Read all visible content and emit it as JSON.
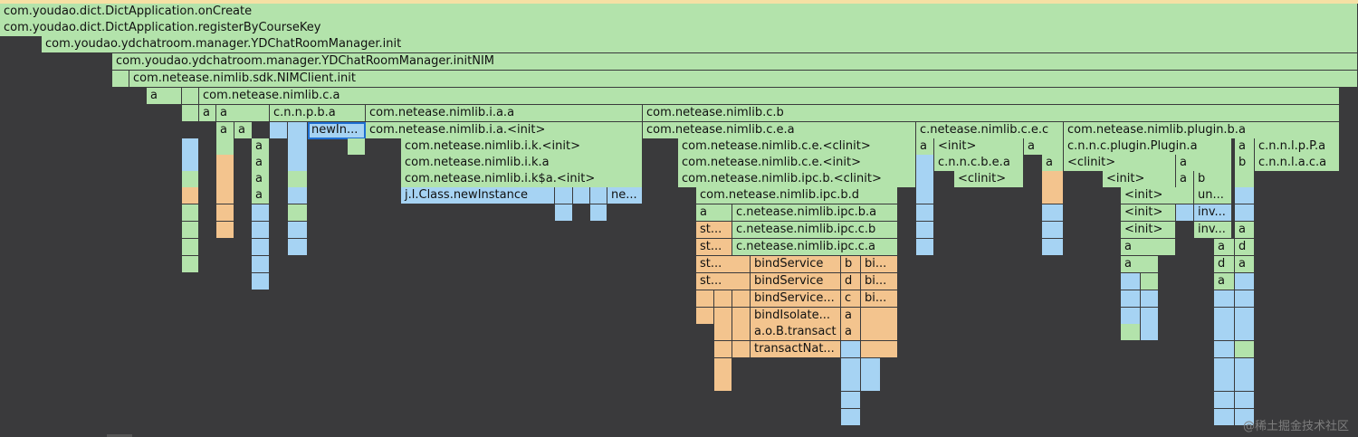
{
  "labels": {
    "onCreate": "com.youdao.dict.DictApplication.onCreate",
    "registerByCourseKey": "com.youdao.dict.DictApplication.registerByCourseKey",
    "ydInit": "com.youdao.ydchatroom.manager.YDChatRoomManager.init",
    "ydInitNIM": "com.youdao.ydchatroom.manager.YDChatRoomManager.initNIM",
    "nimClientInit": "com.netease.nimlib.sdk.NIMClient.init",
    "a": "a",
    "ca": "com.netease.nimlib.c.a",
    "cnnpba": "c.n.n.p.b.a",
    "iaa": "com.netease.nimlib.i.a.a",
    "cb": "com.netease.nimlib.c.b",
    "newIn": "newIn...",
    "iaInit": "com.netease.nimlib.i.a.<init>",
    "cea": "com.netease.nimlib.c.e.a",
    "cecShort": "c.netease.nimlib.c.e.c",
    "pluginBA": "com.netease.nimlib.plugin.b.a",
    "ikInit": "com.netease.nimlib.i.k.<init>",
    "ceClinit": "com.netease.nimlib.c.e.<clinit>",
    "init": "<init>",
    "pluginA": "c.n.n.c.plugin.Plugin.a",
    "cnnlpPa": "c.n.n.l.p.P.a",
    "ika": "com.netease.nimlib.i.k.a",
    "ceInit": "com.netease.nimlib.c.e.<init>",
    "cnncbea": "c.n.n.c.b.e.a",
    "clinit": "<clinit>",
    "cnnlaca": "c.n.n.l.a.c.a",
    "iksaInit": "com.netease.nimlib.i.k$a.<init>",
    "ipcbClinit": "com.netease.nimlib.ipc.b.<clinit>",
    "b": "b",
    "classNewInstance": "j.l.Class.newInstance",
    "ne": "ne...",
    "ipcbd": "com.netease.nimlib.ipc.b.d",
    "un": "un...",
    "cIpcba": "c.netease.nimlib.ipc.b.a",
    "inv": "inv...",
    "st": "st...",
    "cIpccb": "c.netease.nimlib.ipc.c.b",
    "cIpcca": "c.netease.nimlib.ipc.c.a",
    "d": "d",
    "bindService": "bindService",
    "bi": "bi...",
    "bindServiceEll": "bindService...",
    "c": "c",
    "bindIsolate": "bindIsolate...",
    "aobTransact": "a.o.B.transact",
    "transactNat": "transactNat..."
  },
  "colors": {
    "green": "#b3e3ab",
    "blue": "#a6d3f3",
    "orange": "#f3c48e",
    "background": "#3a3a3c"
  },
  "watermark": "@稀土掘金技术社区"
}
